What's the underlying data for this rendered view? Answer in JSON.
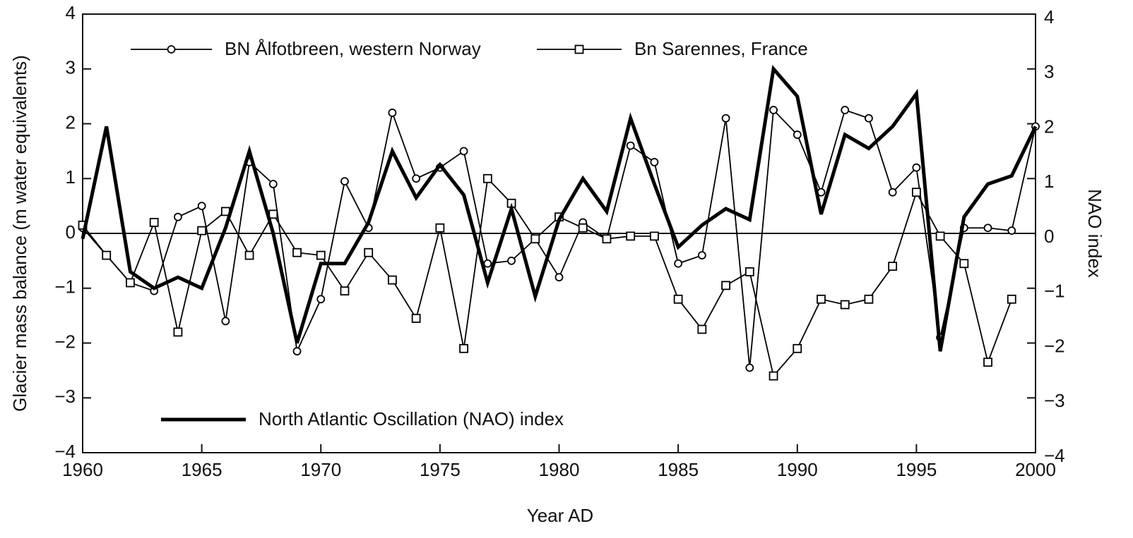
{
  "chart_data": {
    "type": "line",
    "x_label": "Year AD",
    "y_label": "Glacier mass balance (m water equivalents)",
    "y2_label": "NAO index",
    "x": [
      1960,
      1961,
      1962,
      1963,
      1964,
      1965,
      1966,
      1967,
      1968,
      1969,
      1970,
      1971,
      1972,
      1973,
      1974,
      1975,
      1976,
      1977,
      1978,
      1979,
      1980,
      1981,
      1982,
      1983,
      1984,
      1985,
      1986,
      1987,
      1988,
      1989,
      1990,
      1991,
      1992,
      1993,
      1994,
      1995,
      1996,
      1997,
      1998,
      1999,
      2000
    ],
    "series": [
      {
        "name": "BN Ålfotbreen, western Norway",
        "color": "#000000",
        "marker": "circle",
        "values": [
          0.1,
          -0.4,
          -0.9,
          -1.05,
          0.3,
          0.5,
          -1.6,
          1.3,
          0.9,
          -2.15,
          -1.2,
          0.95,
          0.1,
          2.2,
          1.0,
          1.2,
          1.5,
          -0.55,
          -0.5,
          -0.1,
          -0.8,
          0.2,
          -0.1,
          1.6,
          1.3,
          -0.55,
          -0.4,
          2.1,
          -2.45,
          2.25,
          1.8,
          0.75,
          2.25,
          2.1,
          0.75,
          1.2,
          -1.9,
          0.1,
          0.1,
          0.05,
          1.95
        ]
      },
      {
        "name": "Bn Sarennes, France",
        "color": "#000000",
        "marker": "square",
        "values": [
          0.15,
          -0.4,
          -0.9,
          0.2,
          -1.8,
          0.05,
          0.4,
          -0.4,
          0.35,
          -0.35,
          -0.4,
          -1.05,
          -0.35,
          -0.85,
          -1.55,
          0.1,
          -2.1,
          1.0,
          0.55,
          -0.1,
          0.3,
          0.1,
          -0.1,
          -0.05,
          -0.05,
          -1.2,
          -1.75,
          -0.95,
          -0.7,
          -2.6,
          -2.1,
          -1.2,
          -1.3,
          -1.2,
          -0.6,
          0.75,
          -0.05,
          -0.55,
          -2.35,
          -1.2,
          null
        ]
      },
      {
        "name": "North Atlantic Oscillation (NAO) index",
        "color": "#000000",
        "marker": "none",
        "axis": "y2",
        "values": [
          -0.1,
          1.95,
          -0.7,
          -1.0,
          -0.8,
          -1.0,
          0.1,
          1.5,
          0.0,
          -2.0,
          -0.55,
          -0.55,
          0.2,
          1.5,
          0.65,
          1.25,
          0.7,
          -0.9,
          0.45,
          -1.15,
          0.25,
          1.0,
          0.4,
          2.1,
          0.9,
          -0.25,
          0.15,
          0.45,
          0.25,
          3.0,
          2.5,
          0.35,
          1.8,
          1.55,
          1.95,
          2.55,
          -2.15,
          0.3,
          0.9,
          1.05,
          1.95
        ]
      }
    ],
    "xlim": [
      1960,
      2000
    ],
    "xticks": [
      1960,
      1965,
      1970,
      1975,
      1980,
      1985,
      1990,
      1995,
      2000
    ],
    "ylim": [
      -4,
      4
    ],
    "yticks": [
      {
        "value": -4,
        "label": "−4"
      },
      {
        "value": -3,
        "label": "−3"
      },
      {
        "value": -2,
        "label": "−2"
      },
      {
        "value": -1,
        "label": "−1"
      },
      0,
      1,
      2,
      3,
      4
    ],
    "y2lim": [
      -4,
      4
    ],
    "y2ticks": [
      {
        "value": -4,
        "label": "−4"
      },
      {
        "value": -3,
        "label": "−3"
      },
      {
        "value": -2,
        "label": "−2"
      },
      {
        "value": -1,
        "label": "−1"
      },
      0,
      1,
      2,
      3,
      4
    ],
    "zero_line": true
  }
}
